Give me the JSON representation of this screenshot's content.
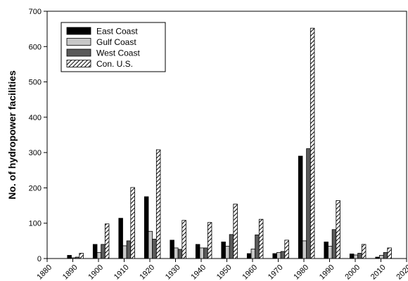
{
  "chart_data": {
    "type": "bar",
    "title": "",
    "xlabel": "",
    "ylabel": "No. of hydropower facilities",
    "ylim": [
      0,
      700
    ],
    "yticks": [
      0,
      100,
      200,
      300,
      400,
      500,
      600,
      700
    ],
    "xlim": [
      1880,
      2020
    ],
    "xticks": [
      1880,
      1890,
      1900,
      1910,
      1920,
      1930,
      1940,
      1950,
      1960,
      1970,
      1980,
      1990,
      2000,
      2010,
      2020
    ],
    "categories": [
      "1890",
      "1900",
      "1910",
      "1920",
      "1930",
      "1940",
      "1950",
      "1960",
      "1970",
      "1980",
      "1990",
      "2000",
      "2010"
    ],
    "series": [
      {
        "name": "East Coast",
        "color": "#000000",
        "pattern": "solid",
        "values": [
          9,
          40,
          114,
          175,
          52,
          40,
          47,
          14,
          14,
          290,
          47,
          13,
          4
        ]
      },
      {
        "name": "Gulf Coast",
        "color": "#c8c8c8",
        "pattern": "solid",
        "values": [
          2,
          17,
          36,
          77,
          30,
          30,
          35,
          27,
          17,
          50,
          35,
          10,
          9
        ]
      },
      {
        "name": "West Coast",
        "color": "#5a5a5a",
        "pattern": "solid",
        "values": [
          4,
          40,
          50,
          55,
          26,
          30,
          68,
          67,
          20,
          311,
          82,
          15,
          17
        ]
      },
      {
        "name": "Con. U.S.",
        "color": "#ffffff",
        "pattern": "diagonal-hatch",
        "values": [
          15,
          98,
          201,
          308,
          108,
          102,
          154,
          111,
          52,
          652,
          164,
          40,
          30
        ]
      }
    ],
    "legend_position": "top-left",
    "grid": false
  }
}
